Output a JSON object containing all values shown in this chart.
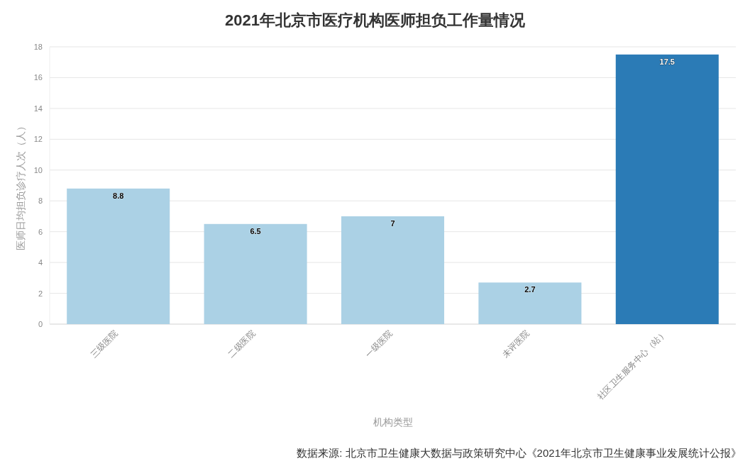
{
  "chart_data": {
    "type": "bar",
    "title": "2021年北京市医疗机构医师担负工作量情况",
    "xlabel": "机构类型",
    "ylabel": "医师日均担负诊疗人次（人）",
    "categories": [
      "三级医院",
      "二级医院",
      "一级医院",
      "未评医院",
      "社区卫生服务中心（站）"
    ],
    "values": [
      8.8,
      6.5,
      7,
      2.7,
      17.5
    ],
    "colors": [
      "#abd1e5",
      "#abd1e5",
      "#abd1e5",
      "#abd1e5",
      "#2b7bb6"
    ],
    "ylim": [
      0,
      18
    ],
    "yticks": [
      0,
      2,
      4,
      6,
      8,
      10,
      12,
      14,
      16,
      18
    ],
    "grid": "y",
    "data_labels": true,
    "annotations": [
      "数据来源: 北京市卫生健康大数据与政策研究中心《2021年北京市卫生健康事业发展统计公报》"
    ]
  }
}
